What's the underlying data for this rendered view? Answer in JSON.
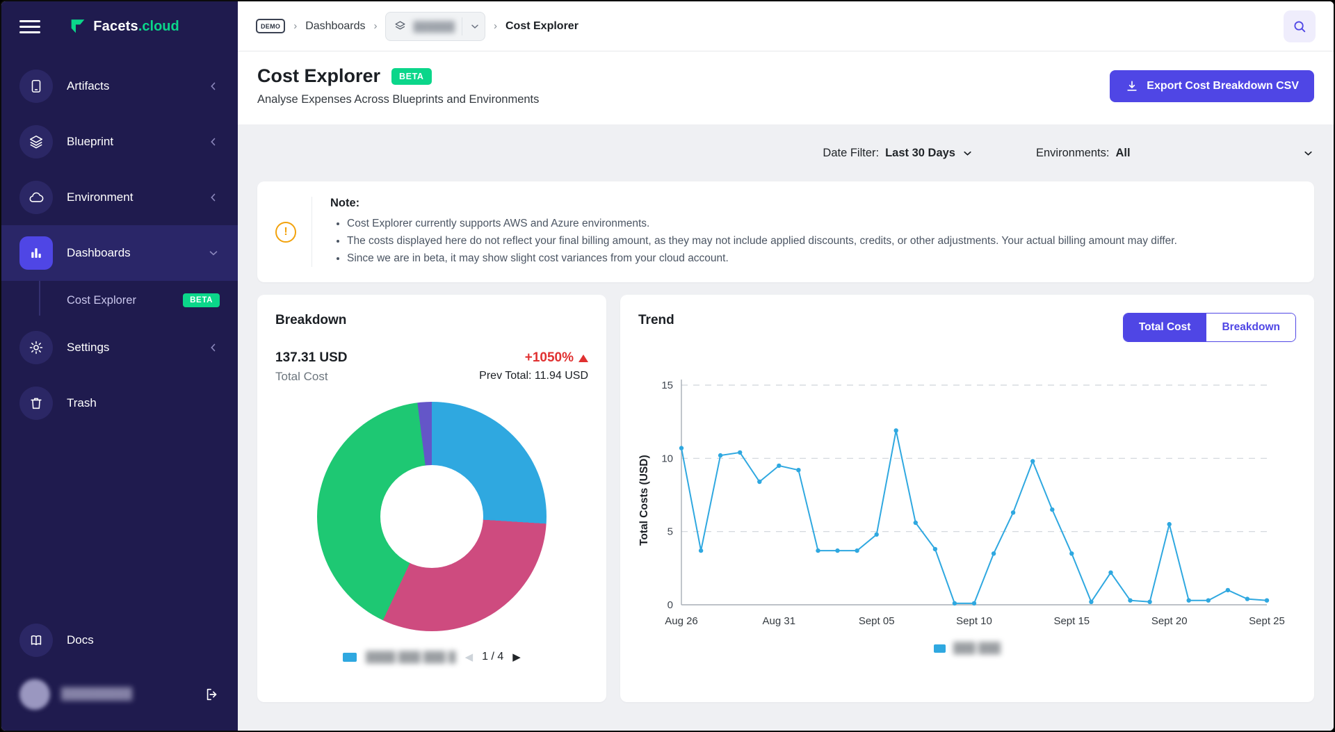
{
  "colors": {
    "accent": "#4F46E5",
    "sidebar_bg": "#1F1B4E",
    "green": "#0BD68A",
    "red": "#E03131",
    "warning": "#F2A20C"
  },
  "sidebar": {
    "logo_text": "Facets",
    "logo_suffix": ".cloud",
    "items": [
      {
        "label": "Artifacts"
      },
      {
        "label": "Blueprint"
      },
      {
        "label": "Environment"
      },
      {
        "label": "Dashboards"
      },
      {
        "label": "Settings"
      },
      {
        "label": "Trash"
      }
    ],
    "sub_item": {
      "label": "Cost Explorer",
      "badge": "BETA"
    },
    "docs_label": "Docs",
    "user_name_blurred": "█████████"
  },
  "topbar": {
    "demo_badge": "DEMO",
    "breadcrumb_dashboards": "Dashboards",
    "dropdown_blurred": "██████",
    "breadcrumb_current": "Cost Explorer"
  },
  "page": {
    "title": "Cost Explorer",
    "beta_badge": "BETA",
    "subtitle": "Analyse Expenses Across Blueprints and Environments",
    "export_button": "Export Cost Breakdown CSV"
  },
  "filters": {
    "date_label": "Date Filter:",
    "date_value": "Last 30 Days",
    "env_label": "Environments:",
    "env_value": "All"
  },
  "note": {
    "title": "Note:",
    "bullets": [
      "Cost Explorer currently supports AWS and Azure environments.",
      "The costs displayed here do not reflect your final billing amount, as they may not include applied discounts, credits, or other adjustments. Your actual billing amount may differ.",
      "Since we are in beta, it may show slight cost variances from your cloud account."
    ]
  },
  "breakdown_card": {
    "title": "Breakdown",
    "total_value": "137.31 USD",
    "total_label": "Total Cost",
    "change": "+1050%",
    "prev_label": "Prev Total: 11.94 USD",
    "legend_blurred": "████ ███ ███ █",
    "pagination": "1 / 4",
    "prev_arrow": "◀",
    "next_arrow": "▶"
  },
  "trend_card": {
    "title": "Trend",
    "toggle": [
      "Total Cost",
      "Breakdown"
    ],
    "legend_blurred": "███ ███"
  },
  "chart_data": [
    {
      "type": "pie",
      "title": "Breakdown",
      "total_label": "137.31 USD",
      "slices": [
        {
          "name": "blue",
          "value": 26,
          "color": "#2FA8E0"
        },
        {
          "name": "pink",
          "value": 31,
          "color": "#CE4B7F"
        },
        {
          "name": "green",
          "value": 41,
          "color": "#1EC873"
        },
        {
          "name": "purple",
          "value": 2,
          "color": "#6456C8"
        }
      ],
      "legend_position": "bottom",
      "donut": true
    },
    {
      "type": "line",
      "title": "Trend",
      "ylabel": "Total Costs (USD)",
      "ylim": [
        0,
        15
      ],
      "yticks": [
        0,
        5,
        10,
        15
      ],
      "grid": "dashed-horizontal",
      "color": "#2FA8E0",
      "x_tick_labels": [
        "Aug 26",
        "Aug 31",
        "Sept 05",
        "Sept 10",
        "Sept 15",
        "Sept 20",
        "Sept 25"
      ],
      "values": [
        10.7,
        3.7,
        10.2,
        10.4,
        8.4,
        9.5,
        9.2,
        3.7,
        3.7,
        3.7,
        4.8,
        11.9,
        5.6,
        3.8,
        0.1,
        0.1,
        3.5,
        6.3,
        9.8,
        6.5,
        3.5,
        0.2,
        2.2,
        0.3,
        0.2,
        5.5,
        0.3,
        0.3,
        1.0,
        0.4,
        0.3
      ],
      "legend_position": "bottom"
    }
  ]
}
